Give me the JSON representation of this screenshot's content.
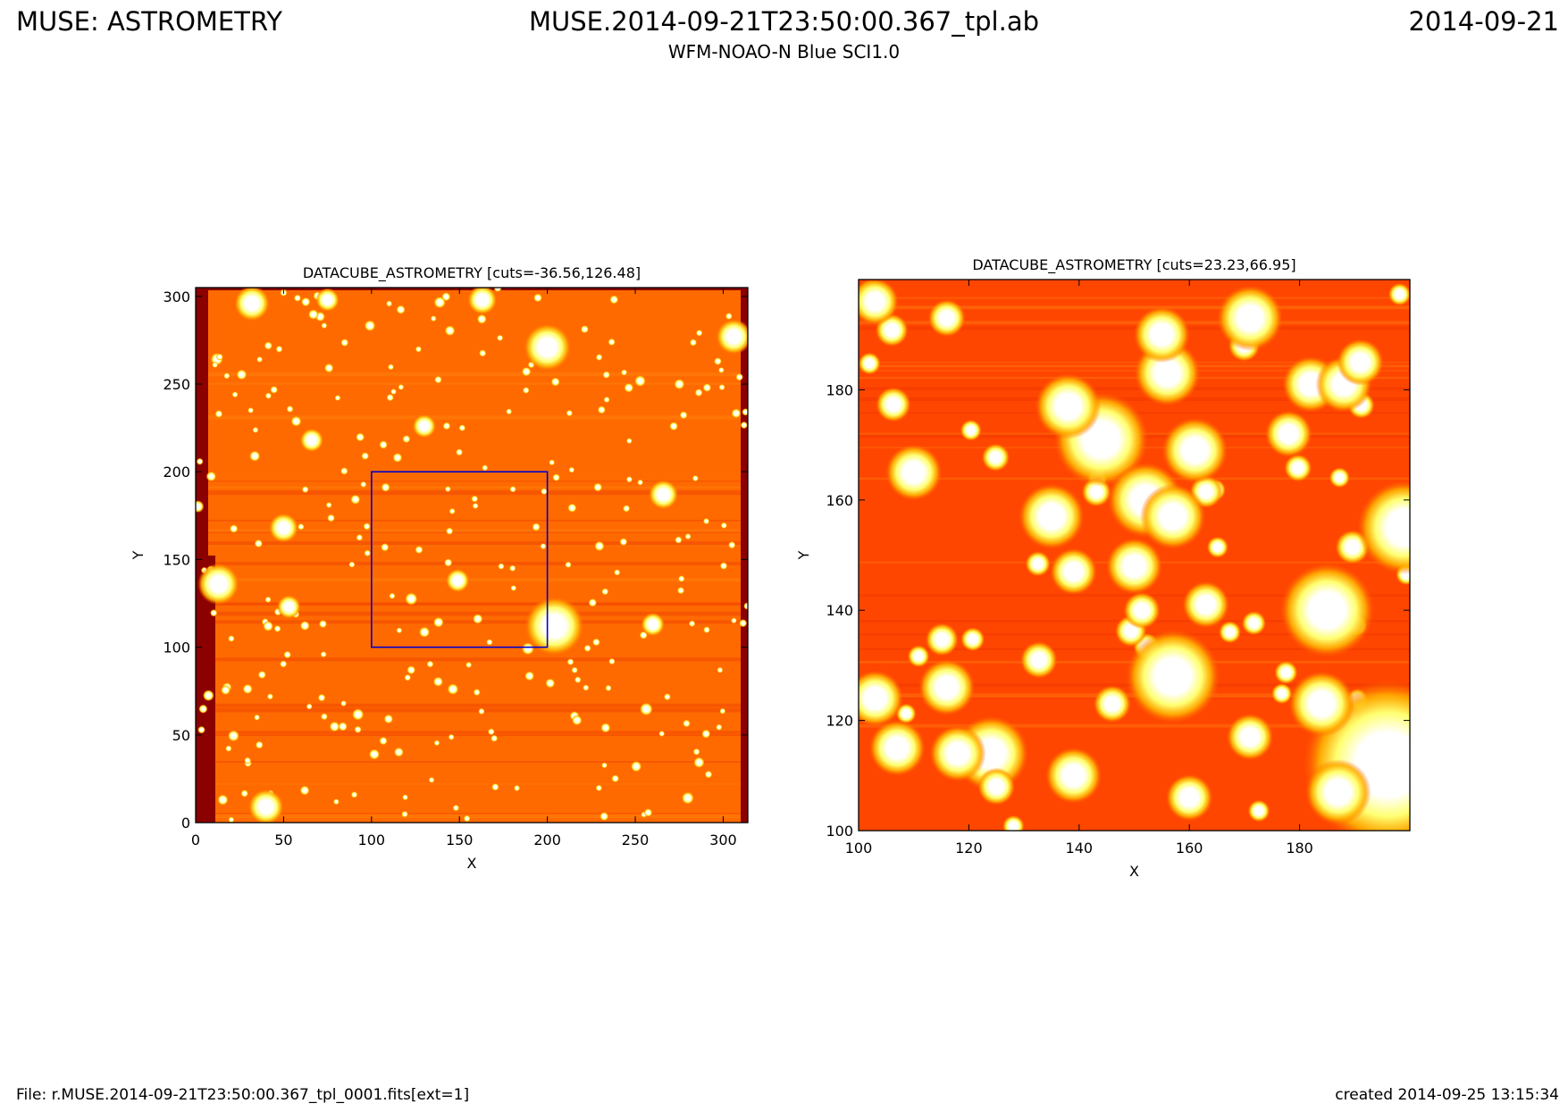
{
  "header": {
    "left": "MUSE: ASTROMETRY",
    "center": "MUSE.2014-09-21T23:50:00.367_tpl.ab",
    "right": "2014-09-21",
    "subtitle": "WFM-NOAO-N Blue SCI1.0"
  },
  "footer": {
    "left": "File: r.MUSE.2014-09-21T23:50:00.367_tpl_0001.fits[ext=1]",
    "right": "created 2014-09-25 13:15:34"
  },
  "chart_data": [
    {
      "type": "heatmap",
      "title": "DATACUBE_ASTROMETRY [cuts=-36.56,126.48]",
      "xlabel": "X",
      "ylabel": "Y",
      "xlim": [
        0,
        314
      ],
      "ylim": [
        0,
        305
      ],
      "xticks": [
        0,
        50,
        100,
        150,
        200,
        250,
        300
      ],
      "yticks": [
        0,
        50,
        100,
        150,
        200,
        250,
        300
      ],
      "cuts": [
        -36.56,
        126.48
      ],
      "colormap": "hot",
      "zoom_box": {
        "x": [
          100,
          200
        ],
        "y": [
          100,
          200
        ],
        "color": "#0000cc"
      },
      "bright_sources": [
        {
          "x": 200,
          "y": 271,
          "r": 8
        },
        {
          "x": 204,
          "y": 112,
          "r": 10
        },
        {
          "x": 40,
          "y": 9,
          "r": 6
        },
        {
          "x": 32,
          "y": 296,
          "r": 6
        },
        {
          "x": 13,
          "y": 136,
          "r": 7
        },
        {
          "x": 306,
          "y": 277,
          "r": 6
        },
        {
          "x": 163,
          "y": 298,
          "r": 5
        },
        {
          "x": 75,
          "y": 298,
          "r": 4
        },
        {
          "x": 50,
          "y": 168,
          "r": 5
        },
        {
          "x": 53,
          "y": 123,
          "r": 4
        },
        {
          "x": 266,
          "y": 187,
          "r": 5
        },
        {
          "x": 260,
          "y": 113,
          "r": 4
        },
        {
          "x": 149,
          "y": 138,
          "r": 4
        },
        {
          "x": 130,
          "y": 226,
          "r": 4
        },
        {
          "x": 66,
          "y": 218,
          "r": 4
        }
      ]
    },
    {
      "type": "heatmap",
      "title": "DATACUBE_ASTROMETRY [cuts=23.23,66.95]",
      "xlabel": "X",
      "ylabel": "Y",
      "xlim": [
        100,
        200
      ],
      "ylim": [
        100,
        200
      ],
      "xticks": [
        100,
        120,
        140,
        160,
        180
      ],
      "yticks": [
        100,
        120,
        140,
        160,
        180
      ],
      "cuts": [
        23.23,
        66.95
      ],
      "colormap": "hot",
      "bright_sources": [
        {
          "x": 144,
          "y": 171,
          "r": 5
        },
        {
          "x": 152,
          "y": 160,
          "r": 4
        },
        {
          "x": 157,
          "y": 157,
          "r": 3.5
        },
        {
          "x": 138,
          "y": 177,
          "r": 3.5
        },
        {
          "x": 135,
          "y": 157,
          "r": 3.5
        },
        {
          "x": 161,
          "y": 169,
          "r": 3.5
        },
        {
          "x": 156,
          "y": 183,
          "r": 3.5
        },
        {
          "x": 155,
          "y": 190,
          "r": 3
        },
        {
          "x": 171,
          "y": 193,
          "r": 3.5
        },
        {
          "x": 185,
          "y": 140,
          "r": 5
        },
        {
          "x": 199,
          "y": 155,
          "r": 5
        },
        {
          "x": 196,
          "y": 112,
          "r": 9
        },
        {
          "x": 157,
          "y": 128,
          "r": 5
        },
        {
          "x": 124,
          "y": 114,
          "r": 4
        },
        {
          "x": 118,
          "y": 114,
          "r": 3
        },
        {
          "x": 103,
          "y": 124,
          "r": 3
        },
        {
          "x": 107,
          "y": 115,
          "r": 3
        },
        {
          "x": 110,
          "y": 165,
          "r": 3
        },
        {
          "x": 139,
          "y": 110,
          "r": 3
        },
        {
          "x": 160,
          "y": 106,
          "r": 2.5
        },
        {
          "x": 187,
          "y": 107,
          "r": 3.5
        },
        {
          "x": 184,
          "y": 123,
          "r": 3.5
        },
        {
          "x": 182,
          "y": 181,
          "r": 3
        },
        {
          "x": 188,
          "y": 181,
          "r": 3
        },
        {
          "x": 191,
          "y": 185,
          "r": 2.5
        },
        {
          "x": 103,
          "y": 196,
          "r": 2.5
        },
        {
          "x": 116,
          "y": 126,
          "r": 3
        },
        {
          "x": 125,
          "y": 108,
          "r": 2
        },
        {
          "x": 146,
          "y": 123,
          "r": 2
        },
        {
          "x": 163,
          "y": 141,
          "r": 2.5
        },
        {
          "x": 171,
          "y": 117,
          "r": 2.5
        },
        {
          "x": 178,
          "y": 172,
          "r": 2.5
        },
        {
          "x": 150,
          "y": 148,
          "r": 3
        },
        {
          "x": 139,
          "y": 147,
          "r": 2.5
        },
        {
          "x": 116,
          "y": 193,
          "r": 2
        }
      ]
    }
  ]
}
